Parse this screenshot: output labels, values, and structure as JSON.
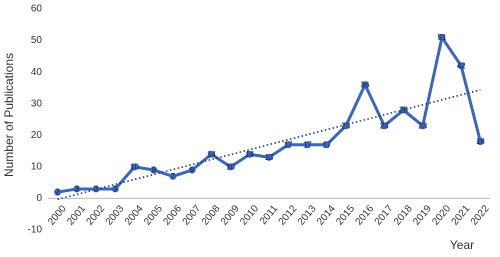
{
  "chart_data": {
    "type": "line",
    "y_label": "Number of Publications",
    "x_label": "Year",
    "categories": [
      "2000",
      "2001",
      "2002",
      "2003",
      "2004",
      "2005",
      "2006",
      "2007",
      "2008",
      "2009",
      "2010",
      "2011",
      "2012",
      "2013",
      "2014",
      "2015",
      "2016",
      "2017",
      "2018",
      "2019",
      "2020",
      "2021",
      "2022"
    ],
    "values": [
      2,
      3,
      3,
      3,
      10,
      9,
      7,
      9,
      14,
      10,
      14,
      13,
      17,
      17,
      17,
      23,
      36,
      23,
      28,
      23,
      51,
      42,
      18
    ],
    "color": "#3b67b5",
    "trendline": "linear",
    "trend_color": "#1f3f7a",
    "ylim": [
      -10,
      60
    ],
    "yticks": [
      -10,
      0,
      10,
      20,
      30,
      40,
      50,
      60
    ],
    "grid": false
  }
}
